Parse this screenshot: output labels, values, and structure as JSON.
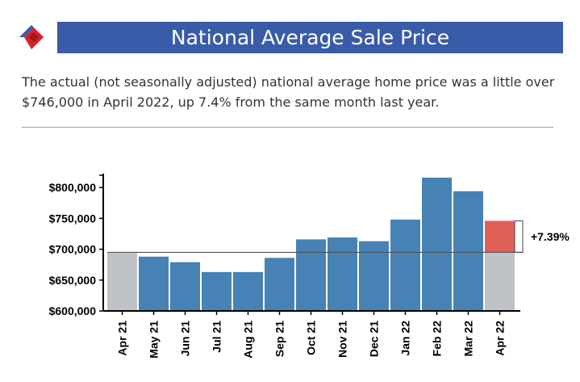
{
  "header": {
    "title": "National Average Sale Price",
    "intro": "The actual (not seasonally adjusted) national average home price was a little over $746,000 in April 2022, up 7.4% from the same month last year."
  },
  "colors": {
    "title_bar": "#3a5ba8",
    "bar": "#4682b4",
    "baseline_bar": "#bfc3c7",
    "highlight_bar": "#e06055",
    "logo_red": "#d2232a",
    "logo_blue": "#3a5ba8"
  },
  "chart_data": {
    "type": "bar",
    "categories": [
      "Apr 21",
      "May 21",
      "Jun 21",
      "Jul 21",
      "Aug 21",
      "Sep 21",
      "Oct 21",
      "Nov 21",
      "Dec 21",
      "Jan 22",
      "Feb 22",
      "Mar 22",
      "Apr 22"
    ],
    "values": [
      695000,
      688000,
      679000,
      663000,
      663000,
      686000,
      716000,
      719000,
      713000,
      748000,
      816000,
      794000,
      746000
    ],
    "yticks": [
      "$600,000",
      "$650,000",
      "$700,000",
      "$750,000",
      "$800,000"
    ],
    "ylim": [
      600000,
      822000
    ],
    "reference_value": 695000,
    "annotation": "+7.39%",
    "title": "",
    "xlabel": "",
    "ylabel": "",
    "grid": false
  }
}
